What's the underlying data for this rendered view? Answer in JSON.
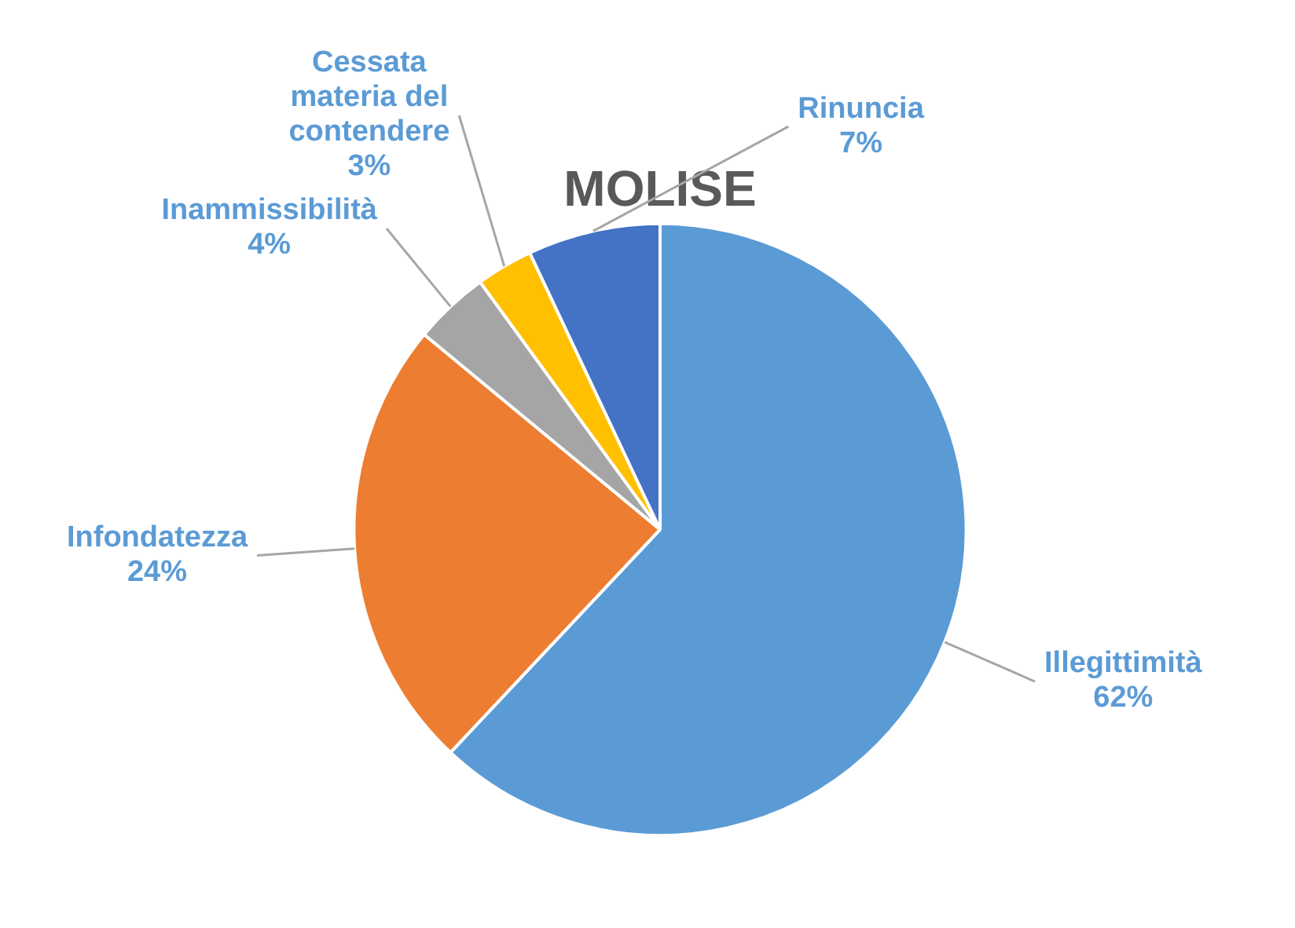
{
  "chart_data": {
    "type": "pie",
    "title": "MOLISE",
    "categories": [
      "Illegittimità",
      "Infondatezza",
      "Inammissibilità",
      "Cessata materia del contendere",
      "Rinuncia"
    ],
    "values": [
      62,
      24,
      4,
      3,
      7
    ],
    "value_labels": [
      "62%",
      "24%",
      "4%",
      "3%",
      "7%"
    ],
    "colors": [
      "#5b9bd5",
      "#ed7d31",
      "#a5a5a5",
      "#ffc000",
      "#4472c4"
    ],
    "legend": false
  }
}
